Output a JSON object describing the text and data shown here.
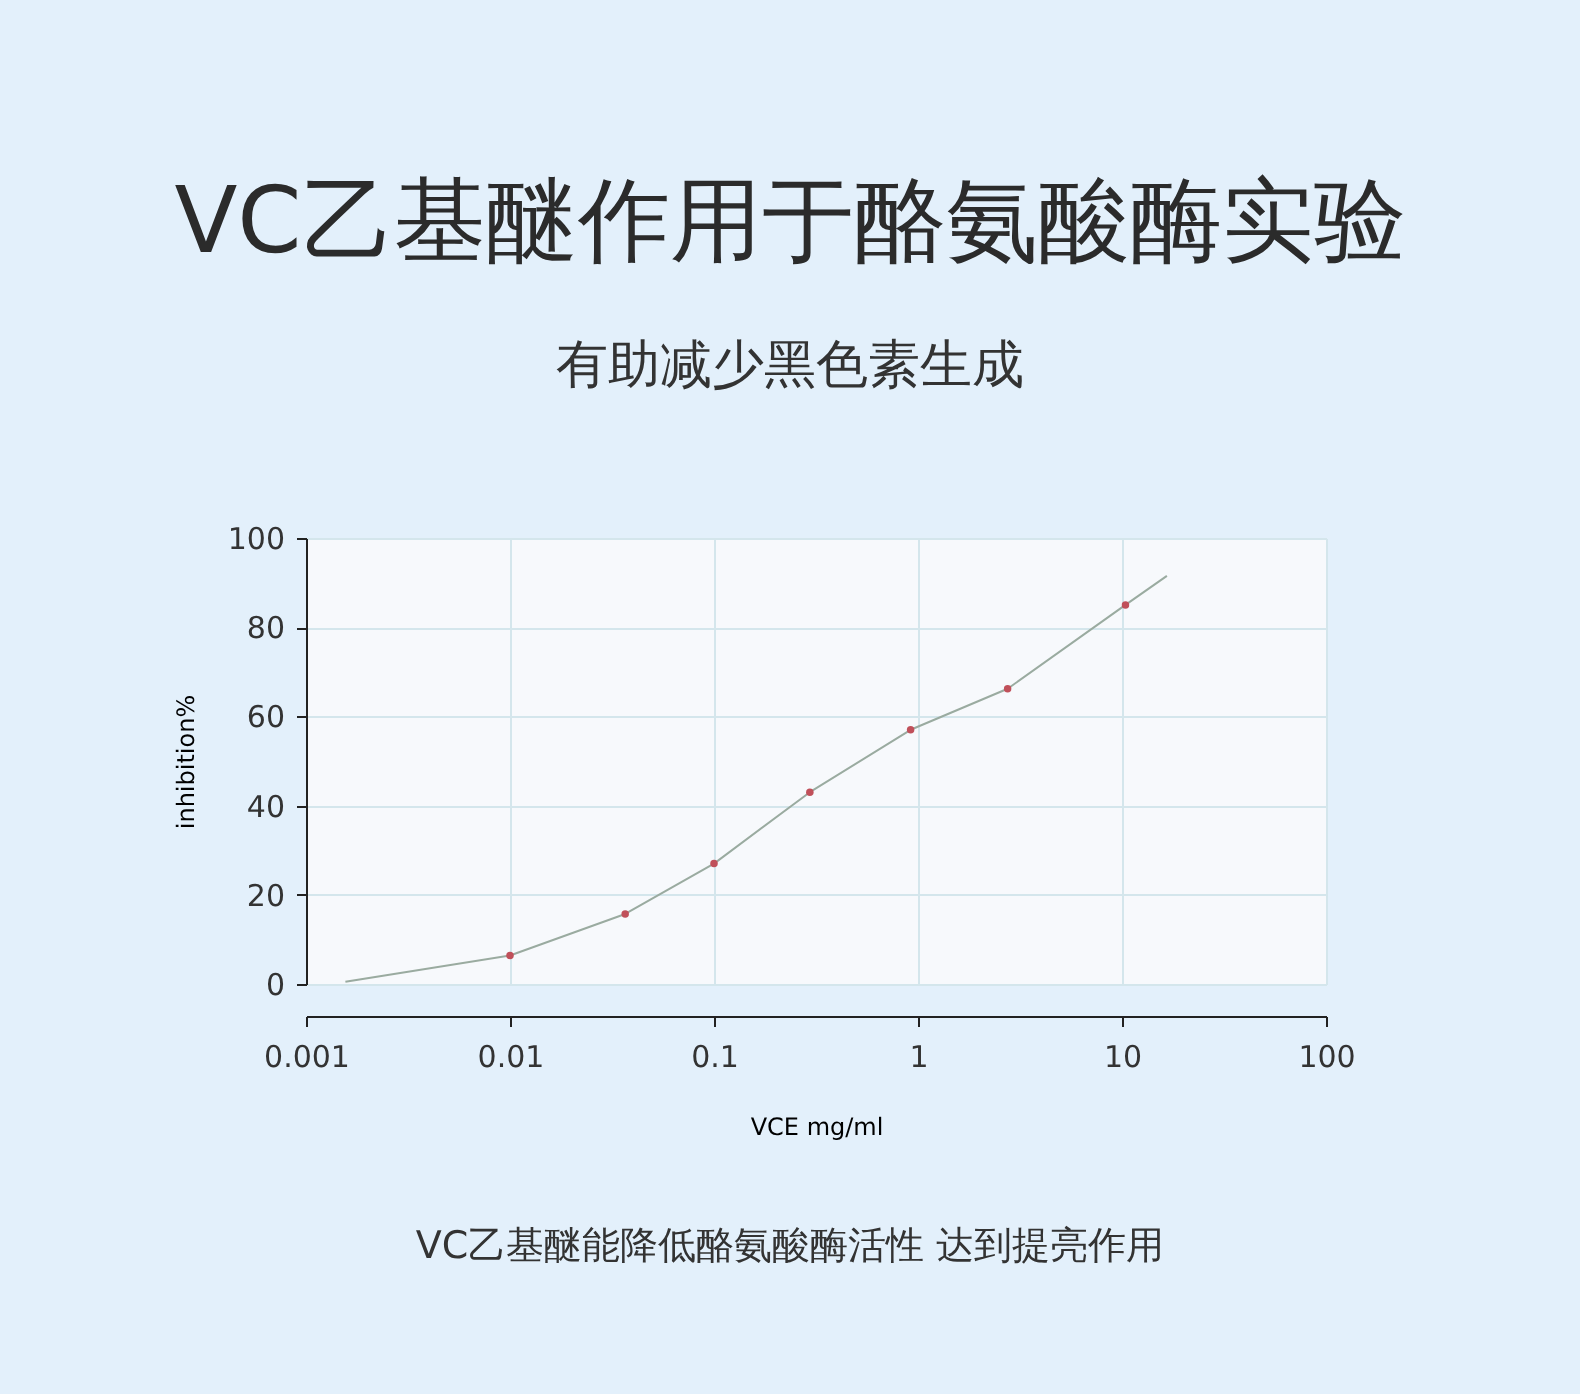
{
  "chart_data": {
    "type": "line",
    "title": "VC乙基醚作用于酪氨酸酶实验",
    "subtitle": "有助减少黑色素生成",
    "xlabel": "VCE mg/ml",
    "ylabel": "inhibition%",
    "annotations": [
      "VC乙基醚能降低酪氨酸酶活性 达到提亮作用"
    ],
    "log": "x",
    "xlim": [
      0.001,
      100
    ],
    "xticks": [
      0.001,
      0.01,
      0.1,
      1,
      10,
      100
    ],
    "ylim": [
      0,
      100
    ],
    "yticks": [
      0,
      20,
      40,
      60,
      80,
      100
    ],
    "grid": true,
    "series": [
      {
        "color": "#9aaba0",
        "marker": "none",
        "x": [
          0.00156,
          0.01,
          0.0367,
          0.1,
          0.295,
          0.92,
          2.75,
          10.4,
          16.6
        ],
        "values": [
          0.5,
          6.4,
          15.7,
          27,
          43,
          57,
          66.2,
          85,
          91.5
        ]
      },
      {
        "type": "scatter",
        "color": "#c0505a",
        "marker": "circle",
        "x": [
          0.01,
          0.0367,
          0.1,
          0.295,
          0.92,
          2.75,
          10.4
        ],
        "values": [
          6.4,
          15.7,
          27,
          43,
          57,
          66.2,
          85
        ]
      }
    ]
  }
}
